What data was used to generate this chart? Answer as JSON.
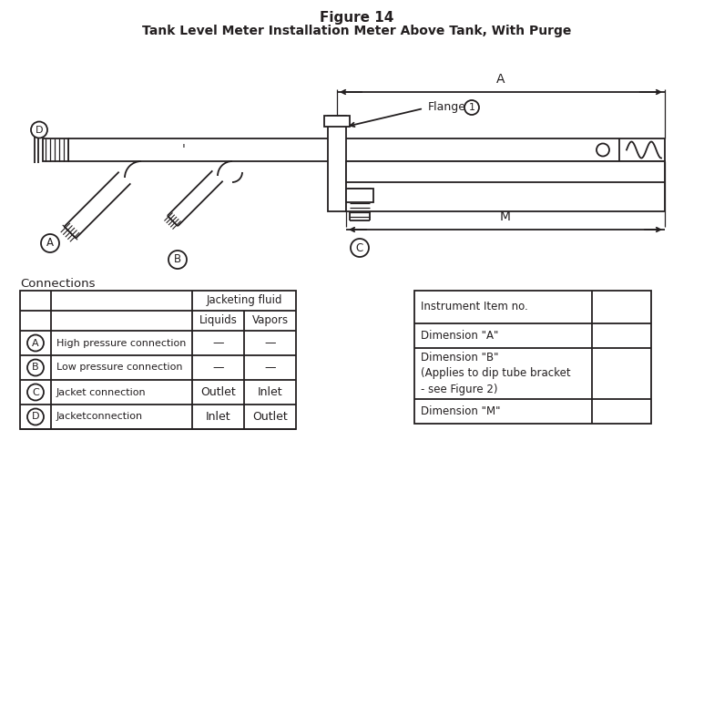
{
  "title_line1": "Figure 14",
  "title_line2": "Tank Level Meter Installation Meter Above Tank, With Purge",
  "bg_color": "#ffffff",
  "line_color": "#231f20",
  "connections_label": "Connections",
  "table1_rows": [
    [
      "A",
      "High pressure connection",
      "—",
      "—"
    ],
    [
      "B",
      "Low pressure connection",
      "—",
      "—"
    ],
    [
      "C",
      "Jacket connection",
      "Outlet",
      "Inlet"
    ],
    [
      "D",
      "Jacketconnection",
      "Inlet",
      "Outlet"
    ]
  ],
  "table2_rows": [
    [
      "Instrument Item no.",
      ""
    ],
    [
      "Dimension \"A\"",
      ""
    ],
    [
      "Dimension \"B\"\n(Applies to dip tube bracket\n- see Figure 2)",
      ""
    ],
    [
      "Dimension \"M\"",
      ""
    ]
  ]
}
